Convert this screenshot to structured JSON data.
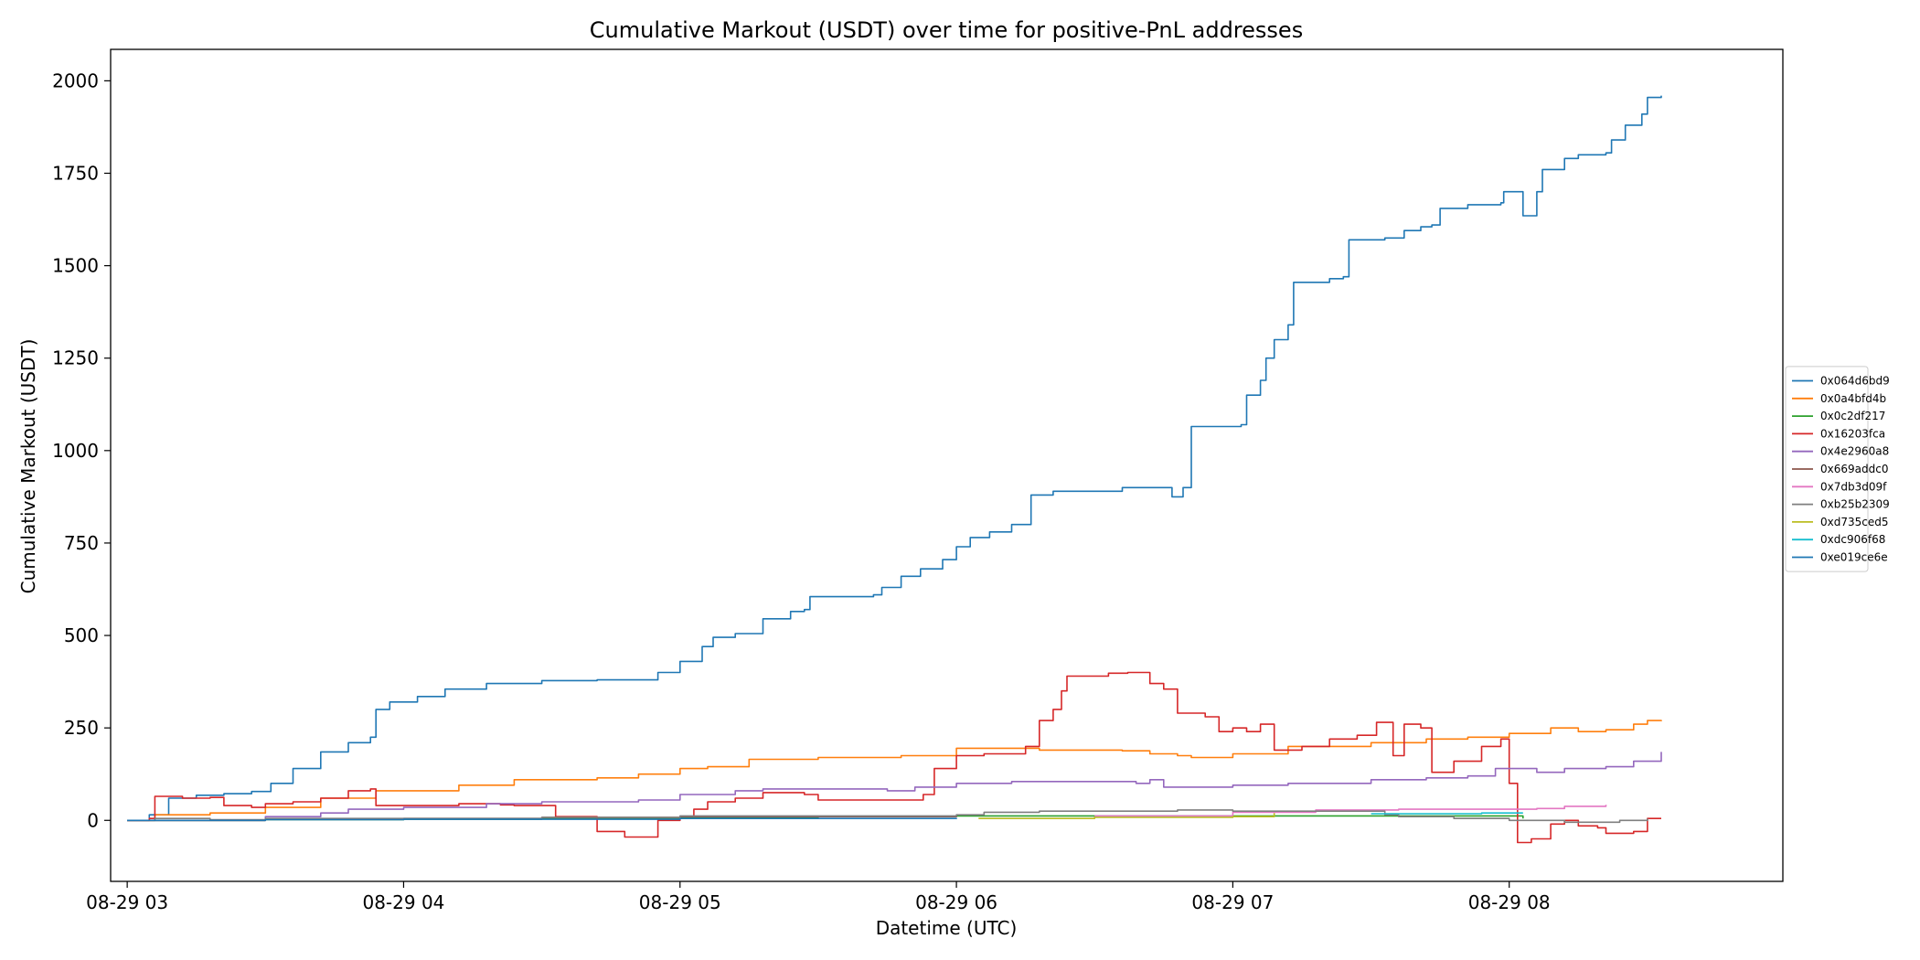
{
  "chart_data": {
    "type": "line",
    "title": "Cumulative Markout (USDT) over time for positive-PnL addresses",
    "xlabel": "Datetime (UTC)",
    "ylabel": "Cumulative Markout (USDT)",
    "x_unit": "hours",
    "xlim": [
      2.94,
      8.99
    ],
    "ylim": [
      -165,
      2085
    ],
    "x_ticks": [
      3,
      4,
      5,
      6,
      7,
      8
    ],
    "x_tick_labels": [
      "08-29 03",
      "08-29 04",
      "08-29 05",
      "08-29 06",
      "08-29 07",
      "08-29 08"
    ],
    "y_ticks": [
      0,
      250,
      500,
      750,
      1000,
      1250,
      1500,
      1750,
      2000
    ],
    "y_tick_labels": [
      "0",
      "250",
      "500",
      "750",
      "1000",
      "1250",
      "1500",
      "1750",
      "2000"
    ],
    "grid": false,
    "legend_position": "center-right-outside",
    "series": [
      {
        "name": "0x064d6bd9",
        "color": "#1f77b4",
        "points": [
          [
            3.0,
            0
          ],
          [
            3.08,
            15
          ],
          [
            3.15,
            60
          ],
          [
            3.25,
            68
          ],
          [
            3.35,
            72
          ],
          [
            3.45,
            78
          ],
          [
            3.52,
            100
          ],
          [
            3.6,
            140
          ],
          [
            3.7,
            185
          ],
          [
            3.8,
            210
          ],
          [
            3.88,
            225
          ],
          [
            3.9,
            300
          ],
          [
            3.95,
            320
          ],
          [
            4.05,
            335
          ],
          [
            4.15,
            355
          ],
          [
            4.3,
            370
          ],
          [
            4.5,
            378
          ],
          [
            4.7,
            380
          ],
          [
            4.88,
            380
          ],
          [
            4.92,
            400
          ],
          [
            5.0,
            430
          ],
          [
            5.08,
            470
          ],
          [
            5.12,
            495
          ],
          [
            5.2,
            505
          ],
          [
            5.3,
            545
          ],
          [
            5.4,
            565
          ],
          [
            5.45,
            570
          ],
          [
            5.47,
            605
          ],
          [
            5.7,
            610
          ],
          [
            5.73,
            630
          ],
          [
            5.8,
            660
          ],
          [
            5.87,
            680
          ],
          [
            5.95,
            705
          ],
          [
            6.0,
            740
          ],
          [
            6.05,
            765
          ],
          [
            6.12,
            780
          ],
          [
            6.2,
            800
          ],
          [
            6.27,
            880
          ],
          [
            6.35,
            890
          ],
          [
            6.6,
            900
          ],
          [
            6.75,
            900
          ],
          [
            6.78,
            875
          ],
          [
            6.82,
            900
          ],
          [
            6.85,
            1065
          ],
          [
            7.03,
            1070
          ],
          [
            7.05,
            1150
          ],
          [
            7.1,
            1190
          ],
          [
            7.12,
            1250
          ],
          [
            7.15,
            1300
          ],
          [
            7.2,
            1340
          ],
          [
            7.22,
            1455
          ],
          [
            7.35,
            1465
          ],
          [
            7.4,
            1470
          ],
          [
            7.42,
            1570
          ],
          [
            7.55,
            1575
          ],
          [
            7.62,
            1595
          ],
          [
            7.68,
            1605
          ],
          [
            7.72,
            1610
          ],
          [
            7.75,
            1655
          ],
          [
            7.85,
            1665
          ],
          [
            7.97,
            1670
          ],
          [
            7.98,
            1700
          ],
          [
            8.05,
            1635
          ],
          [
            8.1,
            1700
          ],
          [
            8.12,
            1760
          ],
          [
            8.2,
            1790
          ],
          [
            8.25,
            1800
          ],
          [
            8.35,
            1805
          ],
          [
            8.37,
            1840
          ],
          [
            8.42,
            1880
          ],
          [
            8.45,
            1880
          ],
          [
            8.48,
            1910
          ],
          [
            8.5,
            1955
          ],
          [
            8.55,
            1960
          ]
        ]
      },
      {
        "name": "0x0a4bfd4b",
        "color": "#ff7f0e",
        "points": [
          [
            3.0,
            0
          ],
          [
            3.1,
            15
          ],
          [
            3.3,
            20
          ],
          [
            3.5,
            35
          ],
          [
            3.7,
            60
          ],
          [
            3.9,
            80
          ],
          [
            4.2,
            95
          ],
          [
            4.4,
            110
          ],
          [
            4.7,
            115
          ],
          [
            4.85,
            125
          ],
          [
            5.0,
            140
          ],
          [
            5.1,
            145
          ],
          [
            5.25,
            165
          ],
          [
            5.5,
            170
          ],
          [
            5.8,
            175
          ],
          [
            6.0,
            195
          ],
          [
            6.3,
            190
          ],
          [
            6.6,
            188
          ],
          [
            6.7,
            180
          ],
          [
            6.8,
            175
          ],
          [
            6.85,
            170
          ],
          [
            7.0,
            180
          ],
          [
            7.2,
            200
          ],
          [
            7.5,
            210
          ],
          [
            7.7,
            220
          ],
          [
            7.85,
            225
          ],
          [
            8.0,
            235
          ],
          [
            8.15,
            250
          ],
          [
            8.25,
            240
          ],
          [
            8.35,
            245
          ],
          [
            8.45,
            260
          ],
          [
            8.5,
            270
          ],
          [
            8.55,
            268
          ]
        ]
      },
      {
        "name": "0x0c2df217",
        "color": "#2ca02c",
        "points": [
          [
            3.0,
            0
          ],
          [
            3.5,
            2
          ],
          [
            4.0,
            3
          ],
          [
            4.5,
            5
          ],
          [
            5.0,
            8
          ],
          [
            5.5,
            10
          ],
          [
            6.0,
            12
          ],
          [
            6.5,
            12
          ],
          [
            7.0,
            12
          ],
          [
            7.5,
            12
          ],
          [
            8.0,
            12
          ],
          [
            8.05,
            5
          ]
        ]
      },
      {
        "name": "0x16203fca",
        "color": "#d62728",
        "points": [
          [
            3.0,
            0
          ],
          [
            3.08,
            5
          ],
          [
            3.1,
            65
          ],
          [
            3.2,
            60
          ],
          [
            3.3,
            62
          ],
          [
            3.35,
            40
          ],
          [
            3.45,
            35
          ],
          [
            3.5,
            45
          ],
          [
            3.6,
            50
          ],
          [
            3.7,
            60
          ],
          [
            3.8,
            80
          ],
          [
            3.88,
            85
          ],
          [
            3.9,
            40
          ],
          [
            4.0,
            40
          ],
          [
            4.2,
            45
          ],
          [
            4.35,
            42
          ],
          [
            4.4,
            40
          ],
          [
            4.55,
            10
          ],
          [
            4.7,
            -30
          ],
          [
            4.8,
            -45
          ],
          [
            4.88,
            -45
          ],
          [
            4.92,
            0
          ],
          [
            5.0,
            10
          ],
          [
            5.05,
            30
          ],
          [
            5.1,
            50
          ],
          [
            5.2,
            60
          ],
          [
            5.3,
            75
          ],
          [
            5.45,
            70
          ],
          [
            5.5,
            55
          ],
          [
            5.7,
            55
          ],
          [
            5.88,
            70
          ],
          [
            5.92,
            140
          ],
          [
            6.0,
            175
          ],
          [
            6.1,
            180
          ],
          [
            6.25,
            200
          ],
          [
            6.3,
            270
          ],
          [
            6.35,
            300
          ],
          [
            6.38,
            350
          ],
          [
            6.4,
            390
          ],
          [
            6.55,
            398
          ],
          [
            6.62,
            400
          ],
          [
            6.7,
            370
          ],
          [
            6.75,
            355
          ],
          [
            6.8,
            290
          ],
          [
            6.9,
            280
          ],
          [
            6.95,
            240
          ],
          [
            7.0,
            250
          ],
          [
            7.05,
            240
          ],
          [
            7.1,
            260
          ],
          [
            7.15,
            190
          ],
          [
            7.25,
            200
          ],
          [
            7.35,
            220
          ],
          [
            7.45,
            230
          ],
          [
            7.52,
            265
          ],
          [
            7.58,
            175
          ],
          [
            7.62,
            260
          ],
          [
            7.68,
            250
          ],
          [
            7.72,
            130
          ],
          [
            7.8,
            160
          ],
          [
            7.9,
            200
          ],
          [
            7.97,
            220
          ],
          [
            8.0,
            100
          ],
          [
            8.03,
            -60
          ],
          [
            8.08,
            -50
          ],
          [
            8.15,
            -10
          ],
          [
            8.2,
            0
          ],
          [
            8.25,
            -15
          ],
          [
            8.32,
            -20
          ],
          [
            8.35,
            -35
          ],
          [
            8.45,
            -30
          ],
          [
            8.5,
            5
          ],
          [
            8.55,
            5
          ]
        ]
      },
      {
        "name": "0x4e2960a8",
        "color": "#9467bd",
        "points": [
          [
            3.0,
            0
          ],
          [
            3.5,
            10
          ],
          [
            3.7,
            20
          ],
          [
            3.8,
            30
          ],
          [
            4.0,
            35
          ],
          [
            4.3,
            45
          ],
          [
            4.5,
            50
          ],
          [
            4.85,
            55
          ],
          [
            5.0,
            70
          ],
          [
            5.2,
            80
          ],
          [
            5.3,
            85
          ],
          [
            5.6,
            85
          ],
          [
            5.75,
            80
          ],
          [
            5.85,
            90
          ],
          [
            6.0,
            100
          ],
          [
            6.2,
            105
          ],
          [
            6.5,
            105
          ],
          [
            6.65,
            100
          ],
          [
            6.7,
            110
          ],
          [
            6.75,
            90
          ],
          [
            7.0,
            95
          ],
          [
            7.2,
            100
          ],
          [
            7.5,
            110
          ],
          [
            7.7,
            115
          ],
          [
            7.85,
            120
          ],
          [
            7.95,
            140
          ],
          [
            8.1,
            130
          ],
          [
            8.2,
            140
          ],
          [
            8.35,
            145
          ],
          [
            8.45,
            160
          ],
          [
            8.55,
            185
          ]
        ]
      },
      {
        "name": "0x669addc0",
        "color": "#8c564b",
        "points": [
          [
            3.0,
            0
          ],
          [
            3.5,
            3
          ],
          [
            4.0,
            5
          ],
          [
            4.5,
            8
          ],
          [
            5.0,
            10
          ],
          [
            5.5,
            10
          ],
          [
            6.0,
            12
          ]
        ]
      },
      {
        "name": "0x7db3d09f",
        "color": "#e377c2",
        "points": [
          [
            6.5,
            12
          ],
          [
            7.0,
            22
          ],
          [
            7.3,
            28
          ],
          [
            7.6,
            30
          ],
          [
            8.0,
            30
          ],
          [
            8.1,
            32
          ],
          [
            8.2,
            38
          ],
          [
            8.35,
            42
          ]
        ]
      },
      {
        "name": "0xb25b2309",
        "color": "#7f7f7f",
        "points": [
          [
            3.0,
            0
          ],
          [
            3.1,
            5
          ],
          [
            3.3,
            2
          ],
          [
            3.5,
            5
          ],
          [
            4.0,
            5
          ],
          [
            4.5,
            8
          ],
          [
            5.0,
            12
          ],
          [
            5.5,
            12
          ],
          [
            6.0,
            15
          ],
          [
            6.1,
            22
          ],
          [
            6.3,
            25
          ],
          [
            6.8,
            28
          ],
          [
            7.0,
            25
          ],
          [
            7.5,
            25
          ],
          [
            7.55,
            15
          ],
          [
            7.6,
            10
          ],
          [
            7.8,
            5
          ],
          [
            8.0,
            0
          ],
          [
            8.2,
            -5
          ],
          [
            8.4,
            0
          ],
          [
            8.5,
            5
          ]
        ]
      },
      {
        "name": "0xd735ced5",
        "color": "#bcbd22",
        "points": [
          [
            6.08,
            5
          ],
          [
            6.5,
            8
          ],
          [
            7.0,
            10
          ],
          [
            7.15,
            20
          ]
        ]
      },
      {
        "name": "0xdc906f68",
        "color": "#17becf",
        "points": [
          [
            7.5,
            18
          ],
          [
            7.9,
            20
          ],
          [
            8.05,
            20
          ]
        ]
      },
      {
        "name": "0xe019ce6e",
        "color": "#1f77b4",
        "points": [
          [
            3.0,
            0
          ],
          [
            3.5,
            2
          ],
          [
            4.0,
            3
          ],
          [
            4.5,
            3
          ],
          [
            5.0,
            5
          ],
          [
            5.5,
            5
          ],
          [
            6.0,
            6
          ]
        ]
      }
    ]
  }
}
